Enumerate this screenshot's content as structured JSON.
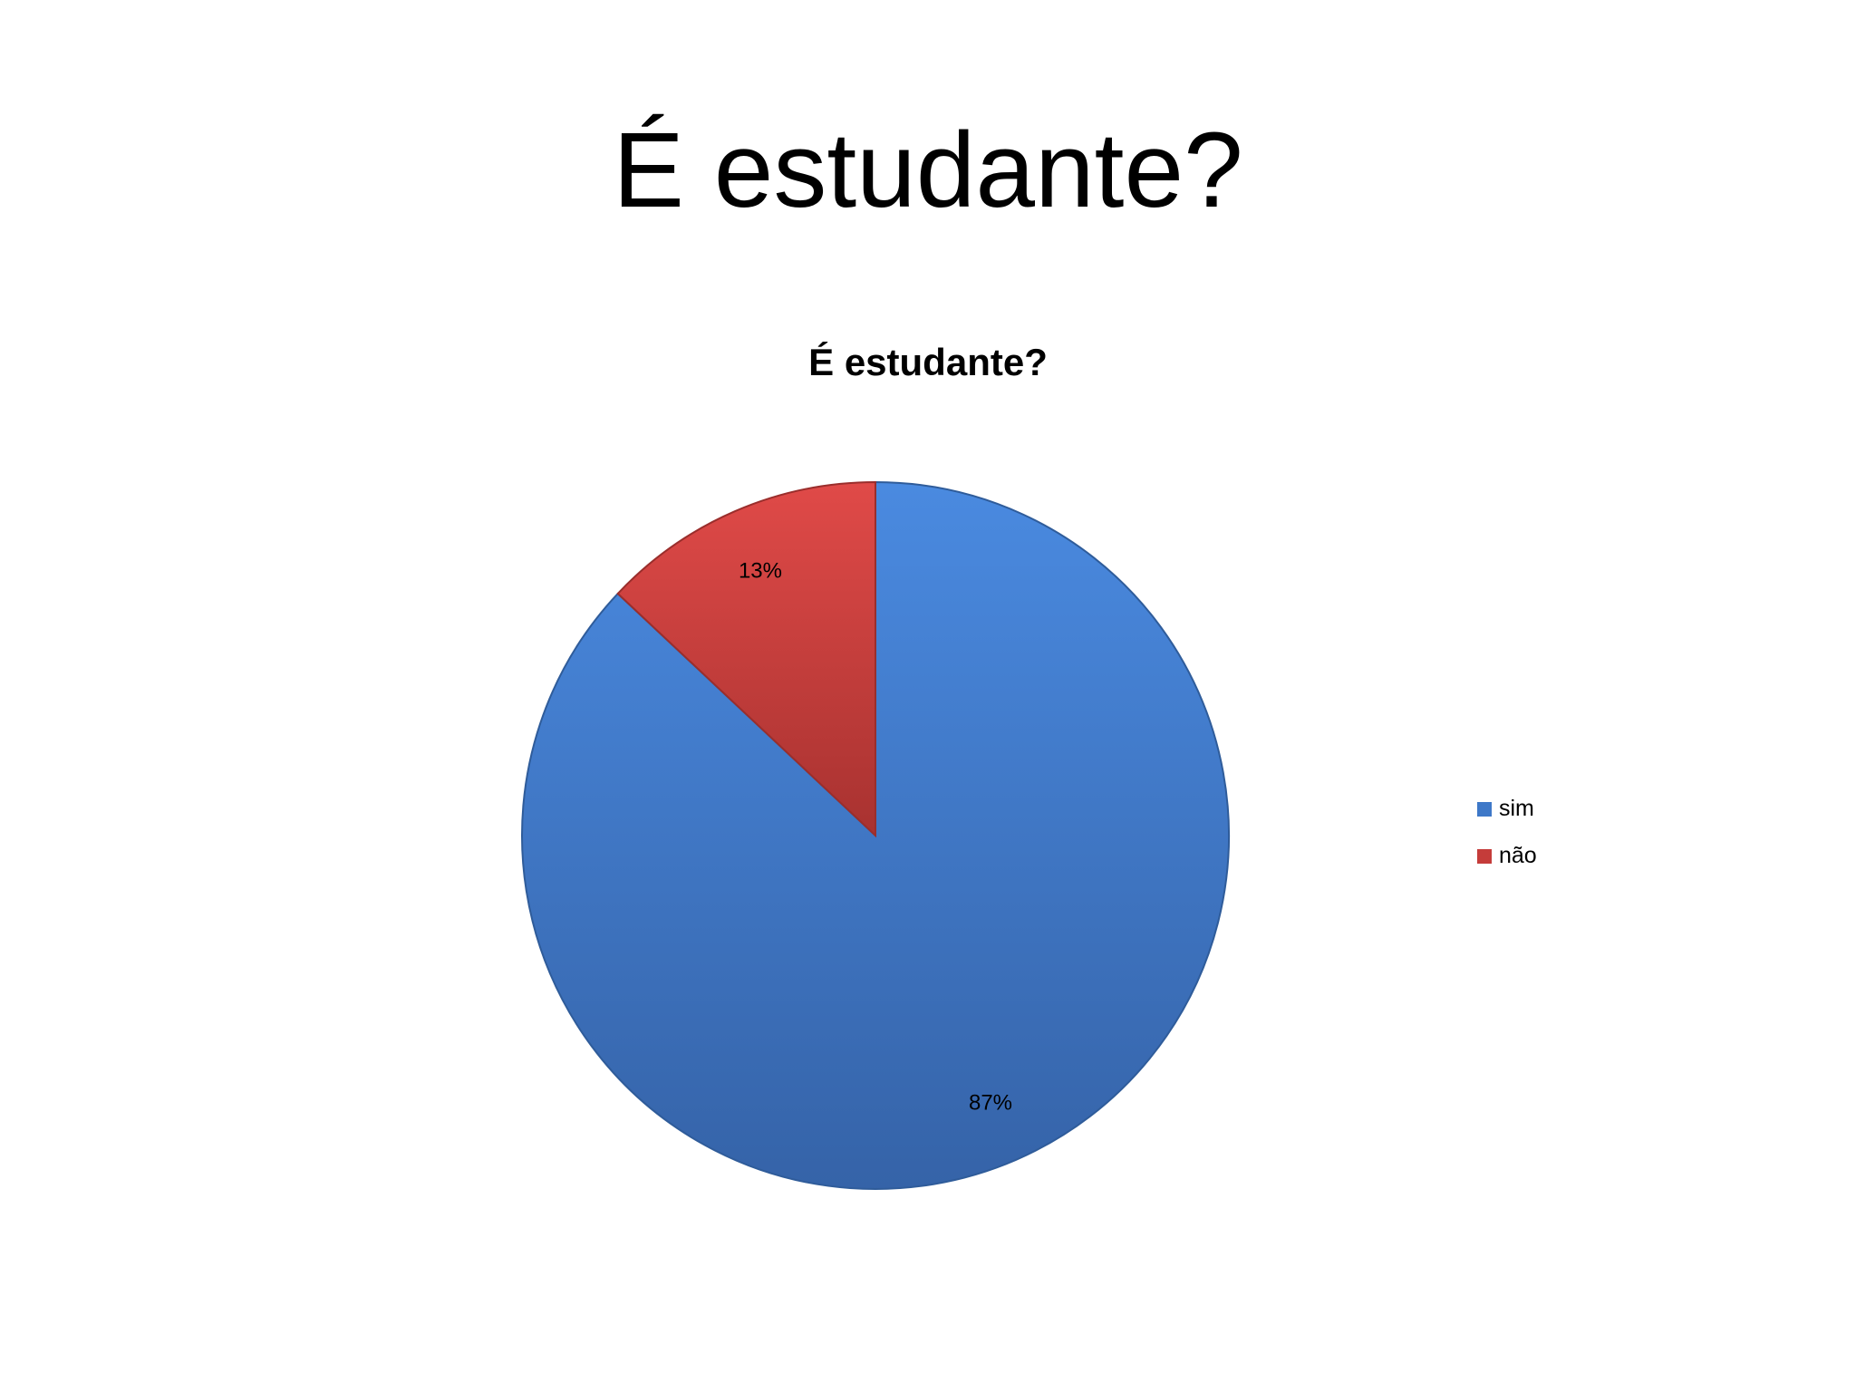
{
  "slide_title": "É estudante?",
  "chart_data": {
    "type": "pie",
    "title": "É estudante?",
    "categories": [
      "sim",
      "não"
    ],
    "values": [
      87,
      13
    ],
    "data_labels": [
      "87%",
      "13%"
    ],
    "colors": [
      "#3e78c8",
      "#c53c3a"
    ],
    "legend_position": "right"
  }
}
